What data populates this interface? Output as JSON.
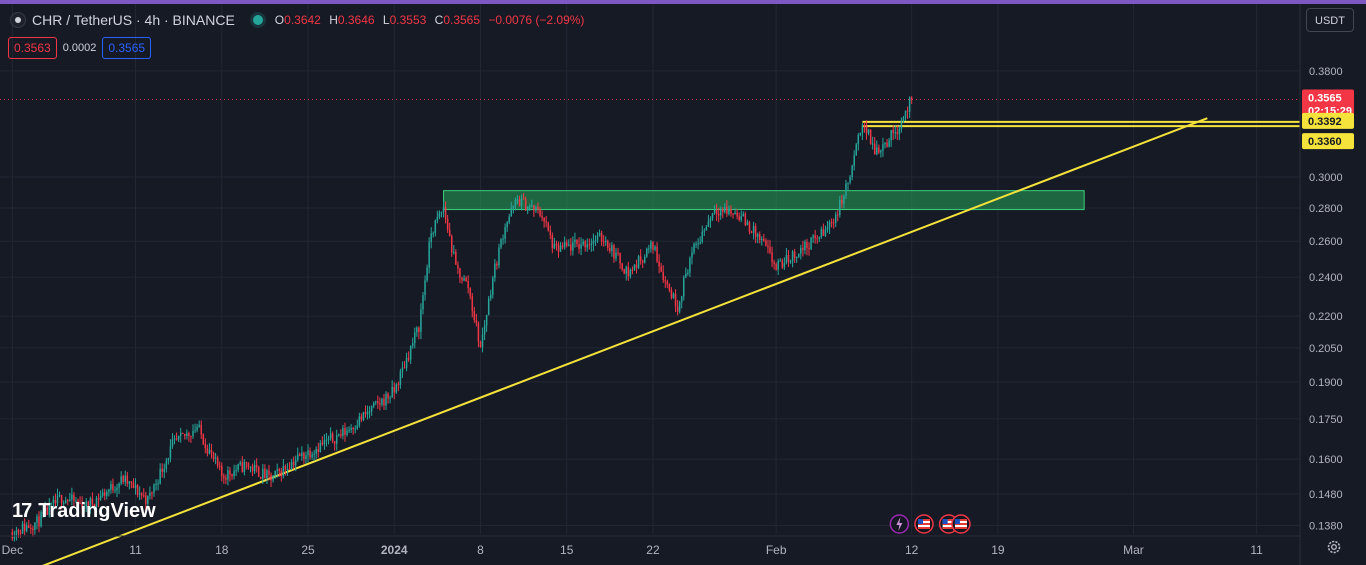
{
  "header": {
    "symbol": "CHR / TetherUS · 4h · BINANCE",
    "o_label": "O",
    "o": "0.3642",
    "h_label": "H",
    "h": "0.3646",
    "l_label": "L",
    "l": "0.3553",
    "c_label": "C",
    "c": "0.3565",
    "change": "−0.0076 (−2.09%)"
  },
  "trade": {
    "sell": "0.3563",
    "spread": "0.0002",
    "buy": "0.3565"
  },
  "currency_button": "USDT",
  "branding": "TradingView",
  "colors": {
    "up": "#26a69a",
    "down": "#f23645",
    "trendline": "#f5e33b",
    "zone": "#26a65b",
    "accent": "#7e57c2"
  },
  "icons": [
    "symbol-logo-icon",
    "market-open-dot-icon",
    "settings-gear-icon",
    "flash-event-icon",
    "us-flag-event-icon"
  ],
  "chart_data": {
    "type": "candlestick",
    "title": "CHR / TetherUS · 4h · BINANCE",
    "y_scale": "log",
    "ylim": [
      0.136,
      0.42
    ],
    "y_ticks": [
      "0.3800",
      "0.3000",
      "0.2800",
      "0.2600",
      "0.2400",
      "0.2200",
      "0.2050",
      "0.1900",
      "0.1750",
      "0.1600",
      "0.1480",
      "0.1380"
    ],
    "x_ticks": [
      "Dec",
      "11",
      "18",
      "25",
      "2024",
      "8",
      "15",
      "22",
      "Feb",
      "12",
      "19",
      "Mar",
      "11"
    ],
    "last_price": {
      "value": 0.3565,
      "label": "0.3565",
      "countdown": "02:15:29"
    },
    "price_levels": [
      {
        "label": "0.3392",
        "value": 0.3392
      },
      {
        "label": "0.3360",
        "value": 0.336
      }
    ],
    "zone": {
      "from": 0.279,
      "to": 0.291,
      "start": "2024-01-05",
      "end": "2024-02-26"
    },
    "trendline": {
      "start_date": "2023-12-03",
      "start_price": 0.1255,
      "end_date": "2024-03-07",
      "end_price": 0.342
    },
    "path_points": [
      [
        "2023-12-01",
        0.136
      ],
      [
        "2023-12-03",
        0.139
      ],
      [
        "2023-12-05",
        0.147
      ],
      [
        "2023-12-07",
        0.144
      ],
      [
        "2023-12-10",
        0.153
      ],
      [
        "2023-12-12",
        0.146
      ],
      [
        "2023-12-14",
        0.165
      ],
      [
        "2023-12-16",
        0.172
      ],
      [
        "2023-12-18",
        0.154
      ],
      [
        "2023-12-20",
        0.158
      ],
      [
        "2023-12-22",
        0.153
      ],
      [
        "2023-12-24",
        0.16
      ],
      [
        "2023-12-26",
        0.165
      ],
      [
        "2023-12-28",
        0.17
      ],
      [
        "2023-12-30",
        0.178
      ],
      [
        "2024-01-01",
        0.186
      ],
      [
        "2024-01-02",
        0.2
      ],
      [
        "2024-01-03",
        0.215
      ],
      [
        "2024-01-04",
        0.265
      ],
      [
        "2024-01-05",
        0.28
      ],
      [
        "2024-01-06",
        0.245
      ],
      [
        "2024-01-07",
        0.235
      ],
      [
        "2024-01-08",
        0.205
      ],
      [
        "2024-01-09",
        0.24
      ],
      [
        "2024-01-10",
        0.27
      ],
      [
        "2024-01-11",
        0.285
      ],
      [
        "2024-01-13",
        0.276
      ],
      [
        "2024-01-14",
        0.255
      ],
      [
        "2024-01-16",
        0.258
      ],
      [
        "2024-01-18",
        0.262
      ],
      [
        "2024-01-20",
        0.242
      ],
      [
        "2024-01-22",
        0.258
      ],
      [
        "2024-01-23",
        0.238
      ],
      [
        "2024-01-24",
        0.225
      ],
      [
        "2024-01-25",
        0.25
      ],
      [
        "2024-01-27",
        0.28
      ],
      [
        "2024-01-29",
        0.276
      ],
      [
        "2024-01-31",
        0.258
      ],
      [
        "2024-02-01",
        0.245
      ],
      [
        "2024-02-03",
        0.255
      ],
      [
        "2024-02-05",
        0.266
      ],
      [
        "2024-02-06",
        0.278
      ],
      [
        "2024-02-07",
        0.3
      ],
      [
        "2024-02-08",
        0.34
      ],
      [
        "2024-02-09",
        0.318
      ],
      [
        "2024-02-10",
        0.325
      ],
      [
        "2024-02-11",
        0.337
      ],
      [
        "2024-02-12",
        0.3565
      ]
    ]
  }
}
